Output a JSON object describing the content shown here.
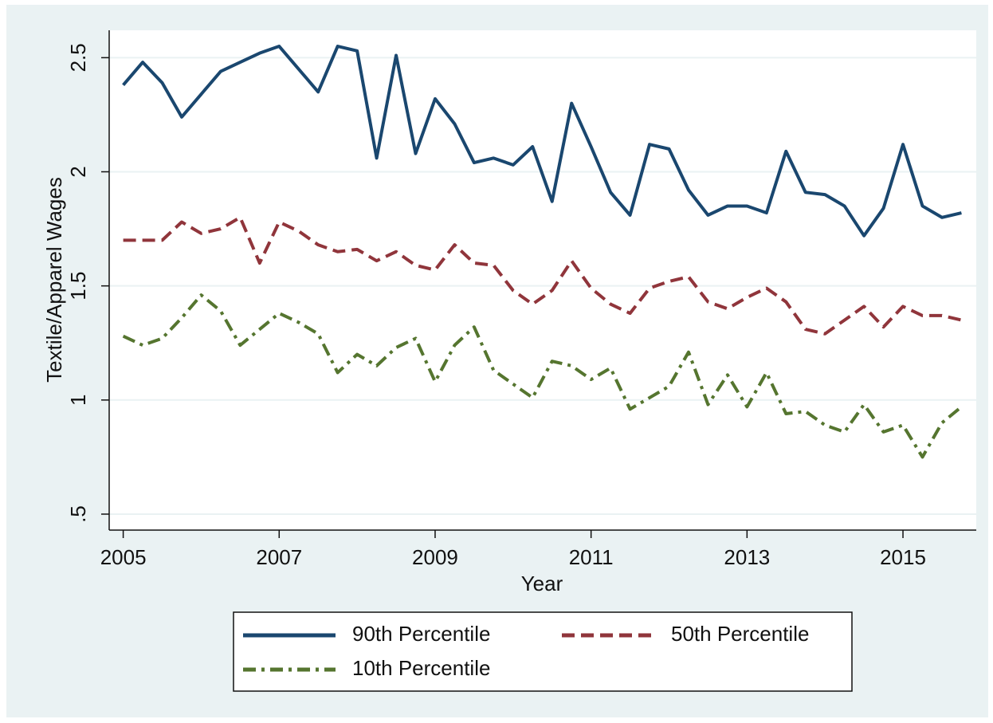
{
  "chart_data": {
    "type": "line",
    "y_label": "Textile/Apparel Wages",
    "x_label": "Year",
    "x": [
      2005,
      2005.25,
      2005.5,
      2005.75,
      2006,
      2006.25,
      2006.5,
      2006.75,
      2007,
      2007.25,
      2007.5,
      2007.75,
      2008,
      2008.25,
      2008.5,
      2008.75,
      2009,
      2009.25,
      2009.5,
      2009.75,
      2010,
      2010.25,
      2010.5,
      2010.75,
      2011,
      2011.25,
      2011.5,
      2011.75,
      2012,
      2012.25,
      2012.5,
      2012.75,
      2013,
      2013.25,
      2013.5,
      2013.75,
      2014,
      2014.25,
      2014.5,
      2014.75,
      2015,
      2015.25,
      2015.5,
      2015.75
    ],
    "series": [
      {
        "name": "90th Percentile",
        "color": "#1a476f",
        "dash": "none",
        "values": [
          2.38,
          2.48,
          2.39,
          2.24,
          2.34,
          2.44,
          2.48,
          2.52,
          2.55,
          2.45,
          2.35,
          2.55,
          2.53,
          2.06,
          2.51,
          2.08,
          2.32,
          2.21,
          2.04,
          2.06,
          2.03,
          2.11,
          1.87,
          2.3,
          2.11,
          1.91,
          1.81,
          2.12,
          2.1,
          1.92,
          1.81,
          1.85,
          1.85,
          1.82,
          2.09,
          1.91,
          1.9,
          1.85,
          1.72,
          1.84,
          2.12,
          1.85,
          1.8,
          1.82
        ]
      },
      {
        "name": "50th Percentile",
        "color": "#90353b",
        "dash": "dashed",
        "values": [
          1.7,
          1.7,
          1.7,
          1.78,
          1.73,
          1.75,
          1.8,
          1.6,
          1.78,
          1.74,
          1.68,
          1.65,
          1.66,
          1.61,
          1.65,
          1.59,
          1.57,
          1.68,
          1.6,
          1.59,
          1.48,
          1.42,
          1.48,
          1.61,
          1.49,
          1.42,
          1.38,
          1.49,
          1.52,
          1.54,
          1.43,
          1.4,
          1.45,
          1.49,
          1.43,
          1.31,
          1.29,
          1.35,
          1.41,
          1.32,
          1.41,
          1.37,
          1.37,
          1.35
        ]
      },
      {
        "name": "10th Percentile",
        "color": "#55752f",
        "dash": "dashdot",
        "values": [
          1.28,
          1.24,
          1.27,
          1.36,
          1.46,
          1.39,
          1.24,
          1.31,
          1.38,
          1.34,
          1.29,
          1.12,
          1.2,
          1.15,
          1.23,
          1.27,
          1.08,
          1.24,
          1.32,
          1.13,
          1.07,
          1.01,
          1.17,
          1.15,
          1.09,
          1.14,
          0.96,
          1.01,
          1.06,
          1.21,
          0.98,
          1.11,
          0.97,
          1.12,
          0.94,
          0.95,
          0.89,
          0.86,
          0.98,
          0.86,
          0.89,
          0.75,
          0.9,
          0.97
        ]
      }
    ],
    "xlim": [
      2004.82,
      2015.94
    ],
    "ylim": [
      0.43,
      2.62
    ],
    "xticks": [
      2005,
      2007,
      2009,
      2011,
      2013,
      2015
    ],
    "yticks": [
      {
        "value": 0.5,
        "label": ".5"
      },
      1,
      1.5,
      2,
      2.5
    ],
    "grid": true,
    "legend": "bottom"
  }
}
